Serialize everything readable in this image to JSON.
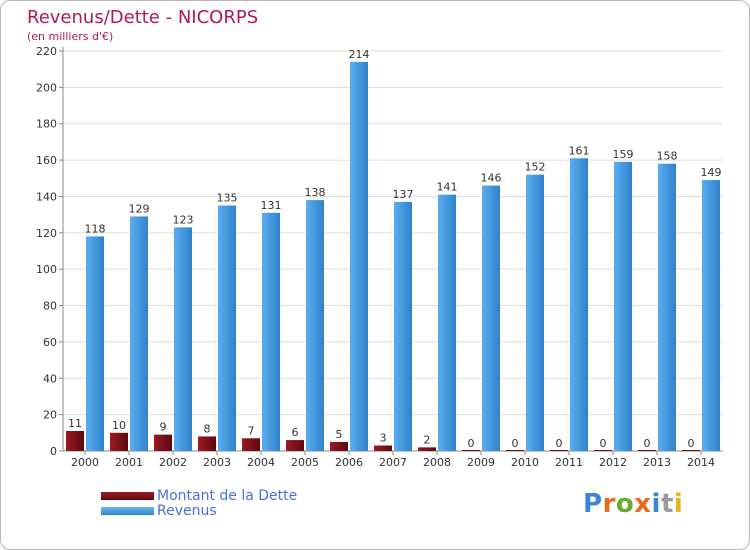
{
  "chart_data": {
    "type": "bar",
    "title": "Revenus/Dette - NICORPS",
    "subtitle": "(en milliers d'€)",
    "xlabel": "",
    "ylabel": "",
    "ylim": [
      0,
      220
    ],
    "yticks": [
      0,
      20,
      40,
      60,
      80,
      100,
      120,
      140,
      160,
      180,
      200,
      220
    ],
    "grid": true,
    "legend_position": "bottom-left",
    "categories": [
      "2000",
      "2001",
      "2002",
      "2003",
      "2004",
      "2005",
      "2006",
      "2007",
      "2008",
      "2009",
      "2010",
      "2011",
      "2012",
      "2013",
      "2014"
    ],
    "series": [
      {
        "name": "Montant de la Dette",
        "color": "#7a0a14",
        "values": [
          11,
          10,
          9,
          8,
          7,
          6,
          5,
          3,
          2,
          0,
          0,
          0,
          0,
          0,
          0
        ]
      },
      {
        "name": "Revenus",
        "color": "#3c95e0",
        "values": [
          118,
          129,
          123,
          135,
          131,
          138,
          214,
          137,
          141,
          146,
          152,
          161,
          159,
          158,
          149
        ]
      }
    ]
  },
  "colors": {
    "title": "#b0185a",
    "legend_text": "#4b6fe0",
    "debt": "#7a0a14",
    "revenue": "#3c95e0"
  },
  "logo": {
    "text": "Proxiti",
    "letter_colors": [
      "#3a86d8",
      "#e96a1c",
      "#6aab2d",
      "#e96a1c",
      "#3a86d8",
      "#9a9a9a",
      "#e3b41c"
    ]
  }
}
